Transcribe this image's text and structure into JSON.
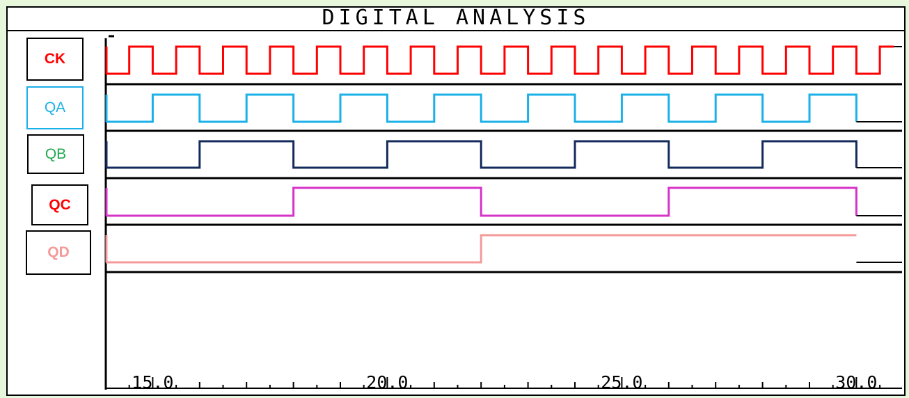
{
  "title": "DIGITAL ANALYSIS",
  "colors": {
    "background": "#e6f7dc",
    "frame": "#000000"
  },
  "signals": [
    {
      "label": "CK",
      "color": "#ff0000",
      "bold": true,
      "box_color": "#000000"
    },
    {
      "label": "QA",
      "color": "#1ab0e8",
      "bold": false,
      "box_color": "#1ab0e8"
    },
    {
      "label": "QB",
      "color": "#142a5c",
      "bold": false,
      "box_color": "#000000",
      "text_color": "#1fa84f"
    },
    {
      "label": "QC",
      "color": "#d633c9",
      "bold": true,
      "box_color": "#000000",
      "text_color": "#ff0000"
    },
    {
      "label": "QD",
      "color": "#f49a9a",
      "bold": true,
      "box_color": "#000000"
    }
  ],
  "chart_data": {
    "type": "line",
    "title": "DIGITAL ANALYSIS",
    "xlabel": "",
    "ylabel": "",
    "xlim": [
      14.0,
      30.8
    ],
    "x_major_ticks": [
      15.0,
      20.0,
      25.0,
      30.0
    ],
    "x_tick_labels": [
      "15.0",
      "20.0",
      "25.0",
      "30.0"
    ],
    "x_minor_step": 0.5,
    "grid": false,
    "series": [
      {
        "name": "CK",
        "x": [
          14.0,
          14.5,
          15.0,
          15.5,
          16.0,
          16.5,
          17.0,
          17.5,
          18.0,
          18.5,
          19.0,
          19.5,
          20.0,
          20.5,
          21.0,
          21.5,
          22.0,
          22.5,
          23.0,
          23.5,
          24.0,
          24.5,
          25.0,
          25.5,
          26.0,
          26.5,
          27.0,
          27.5,
          28.0,
          28.5,
          29.0,
          29.5,
          30.0,
          30.5
        ],
        "levels": [
          0,
          1,
          0,
          1,
          0,
          1,
          0,
          1,
          0,
          1,
          0,
          1,
          0,
          1,
          0,
          1,
          0,
          1,
          0,
          1,
          0,
          1,
          0,
          1,
          0,
          1,
          0,
          1,
          0,
          1,
          0,
          1,
          0,
          1
        ],
        "end": 30.8
      },
      {
        "name": "QA",
        "x": [
          14.0,
          15.0,
          16.0,
          17.0,
          18.0,
          19.0,
          20.0,
          21.0,
          22.0,
          23.0,
          24.0,
          25.0,
          26.0,
          27.0,
          28.0,
          29.0,
          30.0
        ],
        "levels": [
          0,
          1,
          0,
          1,
          0,
          1,
          0,
          1,
          0,
          1,
          0,
          1,
          0,
          1,
          0,
          1,
          0
        ],
        "end": 30.0
      },
      {
        "name": "QB",
        "x": [
          14.0,
          16.0,
          18.0,
          20.0,
          22.0,
          24.0,
          26.0,
          28.0,
          30.0
        ],
        "levels": [
          0,
          1,
          0,
          1,
          0,
          1,
          0,
          1,
          0
        ],
        "end": 30.0
      },
      {
        "name": "QC",
        "x": [
          14.0,
          18.0,
          22.0,
          26.0,
          30.0
        ],
        "levels": [
          0,
          1,
          0,
          1,
          0
        ],
        "end": 30.0
      },
      {
        "name": "QD",
        "x": [
          14.0,
          22.0
        ],
        "levels": [
          0,
          1
        ],
        "end": 30.0
      }
    ]
  }
}
